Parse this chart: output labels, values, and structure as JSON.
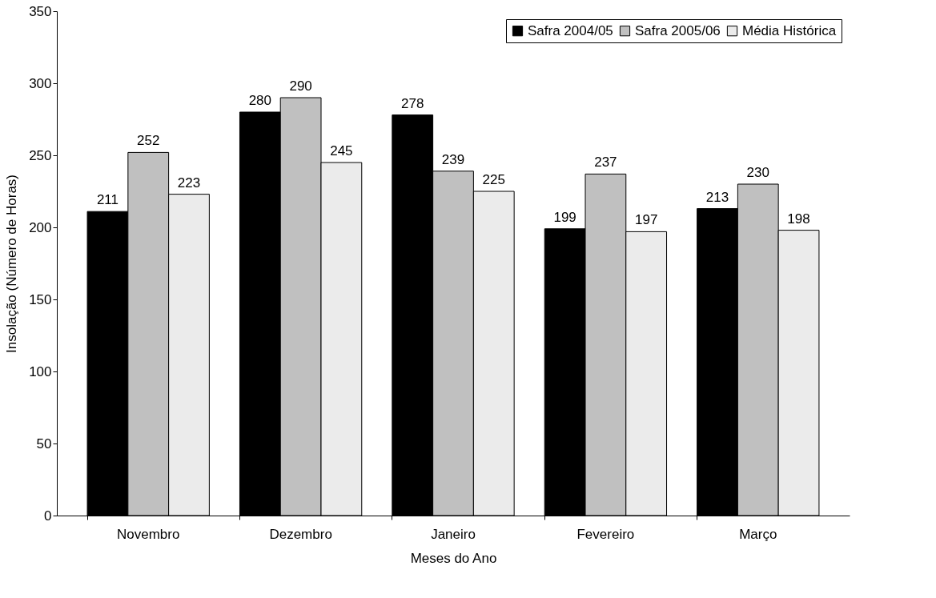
{
  "chart_data": {
    "type": "bar",
    "xlabel": "Meses do Ano",
    "ylabel": "Insolação (Número de Horas)",
    "categories": [
      "Novembro",
      "Dezembro",
      "Janeiro",
      "Fevereiro",
      "Março"
    ],
    "series": [
      {
        "name": "Safra 2004/05",
        "color": "#000000",
        "values": [
          211,
          280,
          278,
          199,
          213
        ]
      },
      {
        "name": "Safra 2005/06",
        "color": "#c0c0c0",
        "values": [
          252,
          290,
          239,
          237,
          230
        ]
      },
      {
        "name": "Média Histórica",
        "color": "#ebebeb",
        "values": [
          223,
          245,
          225,
          197,
          198
        ]
      }
    ],
    "ylim": [
      0,
      350
    ],
    "yticks": [
      0,
      50,
      100,
      150,
      200,
      250,
      300,
      350
    ],
    "data_labels": true,
    "grid": false,
    "legend": "top right"
  }
}
